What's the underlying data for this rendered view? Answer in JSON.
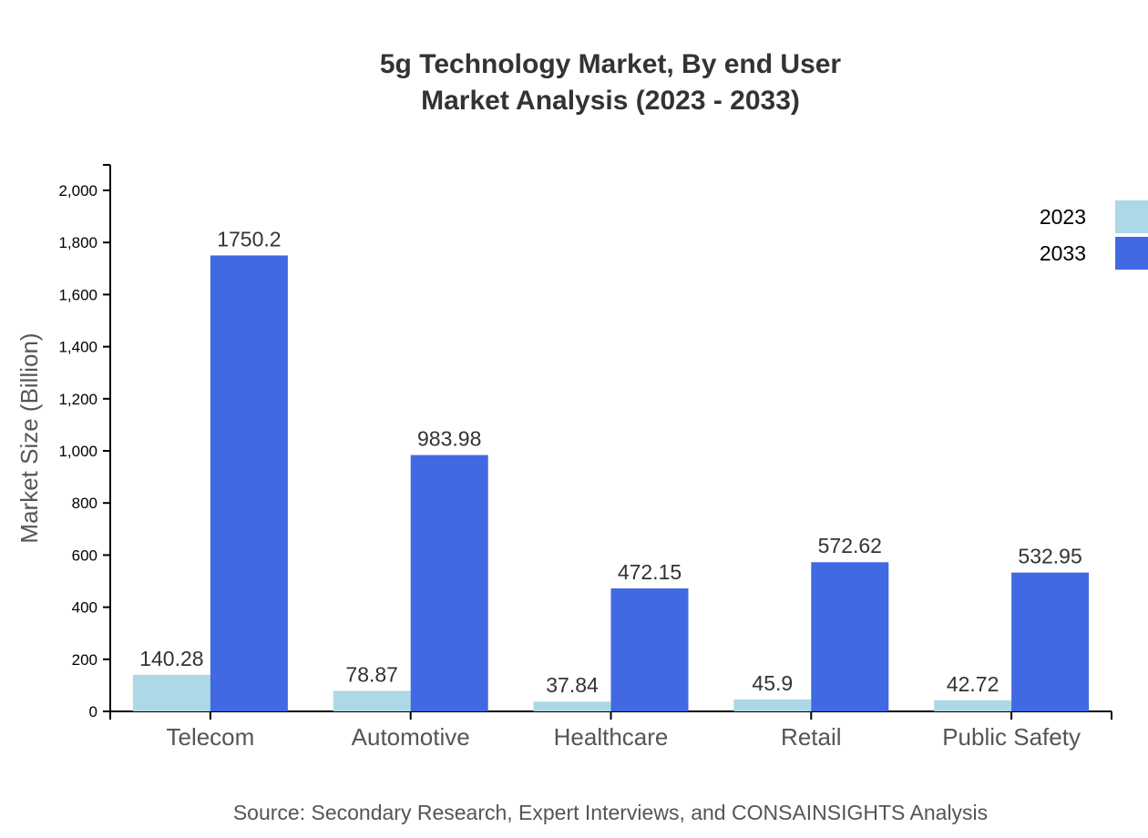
{
  "chart_data": {
    "type": "bar",
    "title": [
      "5g Technology Market, By end User",
      "Market Analysis (2023 - 2033)"
    ],
    "ylabel": "Market Size (Billion)",
    "xlabel": "",
    "ylim": [
      0,
      2100
    ],
    "yticks": [
      0,
      200,
      400,
      600,
      800,
      1000,
      1200,
      1400,
      1600,
      1800,
      2000
    ],
    "ytick_labels": [
      "0",
      "200",
      "400",
      "600",
      "800",
      "1,000",
      "1,200",
      "1,400",
      "1,600",
      "1,800",
      "2,000"
    ],
    "categories": [
      "Telecom",
      "Automotive",
      "Healthcare",
      "Retail",
      "Public Safety"
    ],
    "series": [
      {
        "name": "2023",
        "color": "#add8e6",
        "values": [
          140.28,
          78.87,
          37.84,
          45.9,
          42.72
        ],
        "labels": [
          "140.28",
          "78.87",
          "37.84",
          "45.9",
          "42.72"
        ]
      },
      {
        "name": "2033",
        "color": "#4169e1",
        "values": [
          1750.2,
          983.98,
          472.15,
          572.62,
          532.95
        ],
        "labels": [
          "1750.2",
          "983.98",
          "472.15",
          "572.62",
          "532.95"
        ]
      }
    ],
    "grid": false,
    "legend": "top-right",
    "source": "Source: Secondary Research, Expert Interviews, and CONSAINSIGHTS Analysis"
  }
}
